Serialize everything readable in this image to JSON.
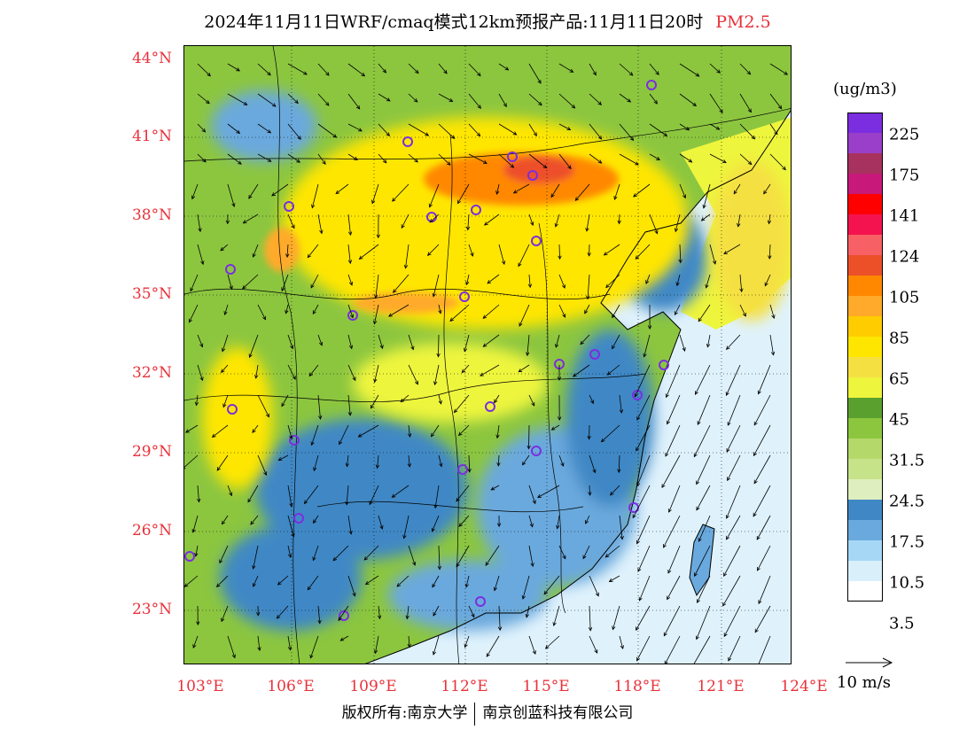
{
  "title": {
    "text": "2024年11月11日WRF/cmaq模式12km预报产品:11月11日20时",
    "pollutant": "PM2.5",
    "pollutant_color": "#e8313a"
  },
  "axes": {
    "lat_labels": [
      "44°N",
      "41°N",
      "38°N",
      "35°N",
      "32°N",
      "29°N",
      "26°N",
      "23°N"
    ],
    "lon_labels": [
      "103°E",
      "106°E",
      "109°E",
      "112°E",
      "115°E",
      "118°E",
      "121°E",
      "124°E"
    ],
    "label_color": "#e8313a"
  },
  "legend": {
    "units": "(ug/m3)",
    "colors": [
      "#7b2ee0",
      "#9a3fc9",
      "#a8325f",
      "#c8197a",
      "#ff0000",
      "#f5134f",
      "#f76065",
      "#ec5029",
      "#ff8800",
      "#ffaa2a",
      "#ffcc00",
      "#ffe600",
      "#f5e042",
      "#eef53d",
      "#5aa02e",
      "#8cc63f",
      "#b5d86a",
      "#c7e38a",
      "#dfeebf",
      "#3f88c5",
      "#6aa9dd",
      "#a6d8f5",
      "#d9f0fb",
      "#ffffff"
    ],
    "labels": [
      "225",
      "175",
      "141",
      "124",
      "105",
      "85",
      "65",
      "45",
      "31.5",
      "24.5",
      "17.5",
      "10.5",
      "3.5"
    ]
  },
  "wind": {
    "reference_label": "10 m/s"
  },
  "copyright": {
    "left": "版权所有:南京大学",
    "right": "南京创蓝科技有限公司"
  },
  "map_colors": {
    "sea": "#dff2fc",
    "low": "#3f88c5",
    "mid": "#8cc63f",
    "high": "#ffe600",
    "peak": "#ff8800"
  }
}
